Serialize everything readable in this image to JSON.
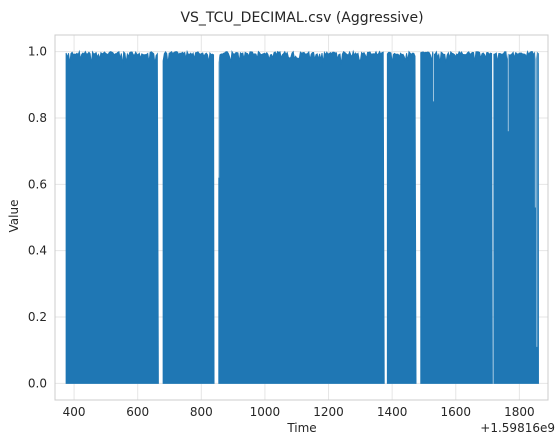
{
  "chart_data": {
    "type": "area",
    "title": "VS_TCU_DECIMAL.csv (Aggressive)",
    "xlabel": "Time",
    "ylabel": "Value",
    "x_offset_label": "+1.59816e9",
    "xlim": [
      340,
      1890
    ],
    "ylim": [
      -0.05,
      1.05
    ],
    "x_ticks": [
      400,
      600,
      800,
      1000,
      1200,
      1400,
      1600,
      1800
    ],
    "y_ticks": [
      0.0,
      0.2,
      0.4,
      0.6,
      0.8,
      1.0
    ],
    "x_tick_labels": [
      "400",
      "600",
      "800",
      "1000",
      "1200",
      "1400",
      "1600",
      "1800"
    ],
    "y_tick_labels": [
      "0.0",
      "0.2",
      "0.4",
      "0.6",
      "0.8",
      "1.0"
    ],
    "grid": true,
    "series_color": "#1f77b4",
    "series": [
      {
        "values_min": 0.0,
        "segments": [
          {
            "x_start": 375,
            "x_end": 665,
            "upper": 0.99
          },
          {
            "x_start": 680,
            "x_end": 840,
            "upper": 0.99
          },
          {
            "x_start": 855,
            "x_end": 1375,
            "upper": 0.99
          },
          {
            "x_start": 1385,
            "x_end": 1475,
            "upper": 0.99
          },
          {
            "x_start": 1490,
            "x_end": 1715,
            "upper": 0.99
          },
          {
            "x_start": 1720,
            "x_end": 1860,
            "upper": 0.99
          }
        ],
        "dips": [
          {
            "x": 1530,
            "y": 0.85
          },
          {
            "x": 1765,
            "y": 0.76
          },
          {
            "x": 1850,
            "y": 0.53
          },
          {
            "x": 1855,
            "y": 0.11
          },
          {
            "x": 855,
            "y": 0.62
          }
        ]
      }
    ]
  }
}
